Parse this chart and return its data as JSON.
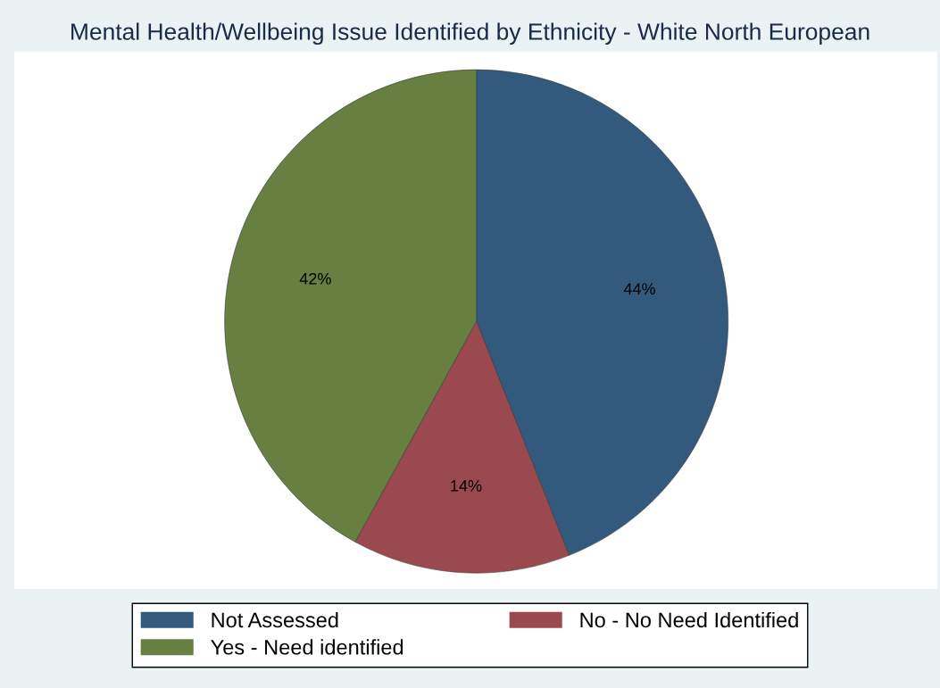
{
  "chart_data": {
    "type": "pie",
    "title": "Mental Health/Wellbeing Issue Identified by Ethnicity - White North European",
    "categories": [
      "Not Assessed",
      "No - No Need Identified",
      "Yes - Need identified"
    ],
    "values": [
      44,
      14,
      42
    ],
    "colors": [
      "#335a7d",
      "#9a4a4f",
      "#677f41"
    ],
    "value_labels": [
      "44%",
      "14%",
      "42%"
    ],
    "legend": "bottom"
  }
}
